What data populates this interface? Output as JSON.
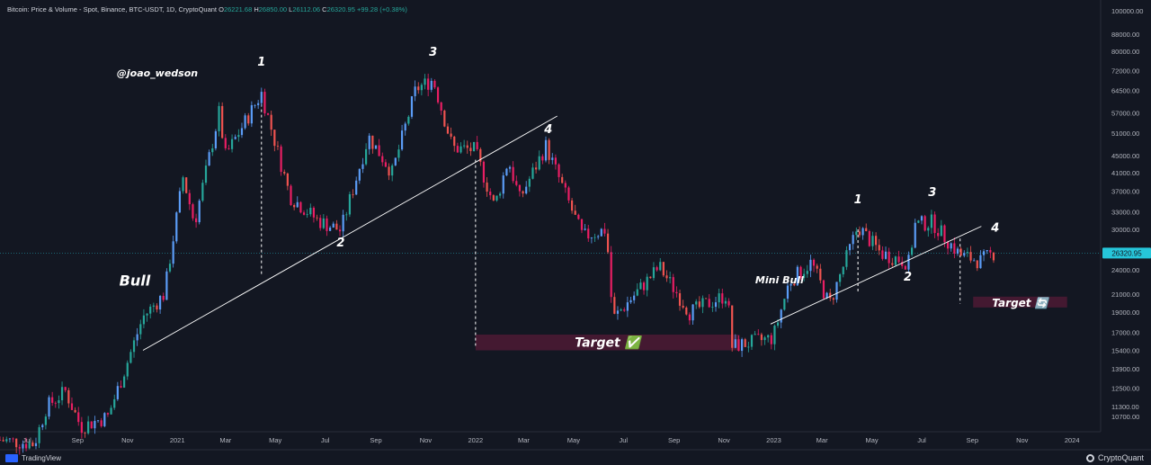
{
  "header": {
    "symbol": "Bitcoin: Price & Volume - Spot, Binance, BTC-USDT, 1D, CryptoQuant",
    "open_label": "O",
    "open_value": "26221.68",
    "high_label": "H",
    "high_value": "26850.00",
    "low_label": "L",
    "low_value": "26112.06",
    "close_label": "C",
    "close_value": "26320.95",
    "change": "+99.28 (+0.38%)"
  },
  "footer": {
    "left_brand": "TradingView",
    "right_brand": "CryptoQuant"
  },
  "colors": {
    "background": "#131722",
    "up": "#26a69a",
    "down": "#ef5350",
    "up_alt": "#5b9cf6",
    "down_alt": "#e91e63",
    "target_box": "#4a1a33",
    "last_price": "#26c6da"
  },
  "chart_data": {
    "type": "candlestick",
    "scale": "log",
    "last_price_label": "26320.95",
    "y_ticks": [
      100000,
      88000,
      80000,
      72000,
      64500,
      57000,
      51000,
      45000,
      41000,
      37000,
      33000,
      30000,
      24000,
      21000,
      19000,
      17000,
      15400,
      13900,
      12500,
      11300,
      10700
    ],
    "y_tick_labels": [
      "100000.00",
      "88000.00",
      "80000.00",
      "72000.00",
      "64500.00",
      "57000.00",
      "51000.00",
      "45000.00",
      "41000.00",
      "37000.00",
      "33000.00",
      "30000.00",
      "24000.00",
      "21000.00",
      "19000.00",
      "17000.00",
      "15400.00",
      "13900.00",
      "12500.00",
      "11300.00",
      "10700.00"
    ],
    "x_tick_labels": [
      "Jul",
      "Sep",
      "Nov",
      "2021",
      "Mar",
      "May",
      "Jul",
      "Sep",
      "Nov",
      "2022",
      "Mar",
      "May",
      "Jul",
      "Sep",
      "Nov",
      "2023",
      "Mar",
      "May",
      "Jul",
      "Sep",
      "Nov",
      "2024"
    ],
    "x_tick_dates": [
      "2020-07-01",
      "2020-09-01",
      "2020-11-01",
      "2021-01-01",
      "2021-03-01",
      "2021-05-01",
      "2021-07-01",
      "2021-09-01",
      "2021-11-01",
      "2022-01-01",
      "2022-03-01",
      "2022-05-01",
      "2022-07-01",
      "2022-09-01",
      "2022-11-01",
      "2023-01-01",
      "2023-03-01",
      "2023-05-01",
      "2023-07-01",
      "2023-09-01",
      "2023-11-01",
      "2024-01-01"
    ],
    "x_range": [
      "2020-05-29",
      "2024-02-05"
    ],
    "price_path": [
      [
        "2020-05-29",
        9400
      ],
      [
        "2020-07-10",
        9200
      ],
      [
        "2020-07-25",
        11300
      ],
      [
        "2020-08-17",
        12300
      ],
      [
        "2020-09-05",
        10100
      ],
      [
        "2020-10-08",
        10700
      ],
      [
        "2020-10-25",
        13200
      ],
      [
        "2020-11-20",
        18500
      ],
      [
        "2020-12-16",
        21000
      ],
      [
        "2021-01-08",
        40000
      ],
      [
        "2021-01-22",
        31000
      ],
      [
        "2021-02-21",
        57000
      ],
      [
        "2021-03-01",
        45000
      ],
      [
        "2021-04-14",
        63500
      ],
      [
        "2021-05-19",
        36000
      ],
      [
        "2021-06-22",
        31500
      ],
      [
        "2021-07-20",
        29800
      ],
      [
        "2021-08-23",
        50000
      ],
      [
        "2021-09-21",
        41000
      ],
      [
        "2021-10-20",
        65000
      ],
      [
        "2021-11-10",
        68500
      ],
      [
        "2021-12-04",
        47000
      ],
      [
        "2021-12-31",
        46500
      ],
      [
        "2022-01-24",
        34000
      ],
      [
        "2022-02-10",
        44000
      ],
      [
        "2022-02-24",
        35500
      ],
      [
        "2022-03-28",
        47500
      ],
      [
        "2022-05-12",
        28800
      ],
      [
        "2022-06-10",
        30000
      ],
      [
        "2022-06-18",
        18300
      ],
      [
        "2022-08-14",
        24400
      ],
      [
        "2022-09-20",
        19000
      ],
      [
        "2022-11-06",
        21000
      ],
      [
        "2022-11-09",
        15700
      ],
      [
        "2022-12-31",
        16500
      ],
      [
        "2023-01-20",
        22500
      ],
      [
        "2023-02-16",
        25000
      ],
      [
        "2023-03-10",
        19800
      ],
      [
        "2023-04-14",
        30500
      ],
      [
        "2023-05-12",
        26300
      ],
      [
        "2023-06-15",
        25000
      ],
      [
        "2023-06-23",
        30800
      ],
      [
        "2023-07-14",
        31200
      ],
      [
        "2023-08-17",
        26000
      ],
      [
        "2023-09-11",
        25200
      ],
      [
        "2023-09-27",
        26320
      ]
    ],
    "annotations": {
      "watermark": "@joao_wedson",
      "labels": [
        {
          "text": "1",
          "date": "2021-04-14",
          "price": 74000
        },
        {
          "text": "3",
          "date": "2021-11-10",
          "price": 78000
        },
        {
          "text": "2",
          "date": "2021-07-20",
          "price": 27300
        },
        {
          "text": "4",
          "date": "2022-03-31",
          "price": 51000
        },
        {
          "text": "Bull",
          "date": "2020-11-10",
          "price": 22000
        },
        {
          "text": "Mini Bull",
          "date": "2023-01-08",
          "price": 22300
        },
        {
          "text": "1",
          "date": "2023-04-14",
          "price": 34600
        },
        {
          "text": "2",
          "date": "2023-06-14",
          "price": 22600
        },
        {
          "text": "3",
          "date": "2023-07-14",
          "price": 36000
        },
        {
          "text": "4",
          "date": "2023-09-29",
          "price": 29600
        }
      ],
      "targets": [
        {
          "text": "Target ✅",
          "from": "2022-01-01",
          "to": "2022-11-20",
          "price_high": 16800,
          "price_low": 15400
        },
        {
          "text": "Target 🔄",
          "from": "2023-09-02",
          "to": "2023-12-26",
          "price_high": 20700,
          "price_low": 19500
        }
      ],
      "trendlines": [
        {
          "from": [
            "2020-11-20",
            15400
          ],
          "to": [
            "2022-04-11",
            56000
          ]
        },
        {
          "from": [
            "2022-12-28",
            17800
          ],
          "to": [
            "2023-09-12",
            30500
          ]
        }
      ],
      "dashed_lines": [
        {
          "date": "2021-04-14",
          "from": 63500,
          "to": 23300
        },
        {
          "date": "2022-01-01",
          "from": 44000,
          "to": 15800
        },
        {
          "date": "2023-04-14",
          "from": 30000,
          "to": 21300
        },
        {
          "date": "2023-08-17",
          "from": 28500,
          "to": 19900
        }
      ]
    }
  }
}
